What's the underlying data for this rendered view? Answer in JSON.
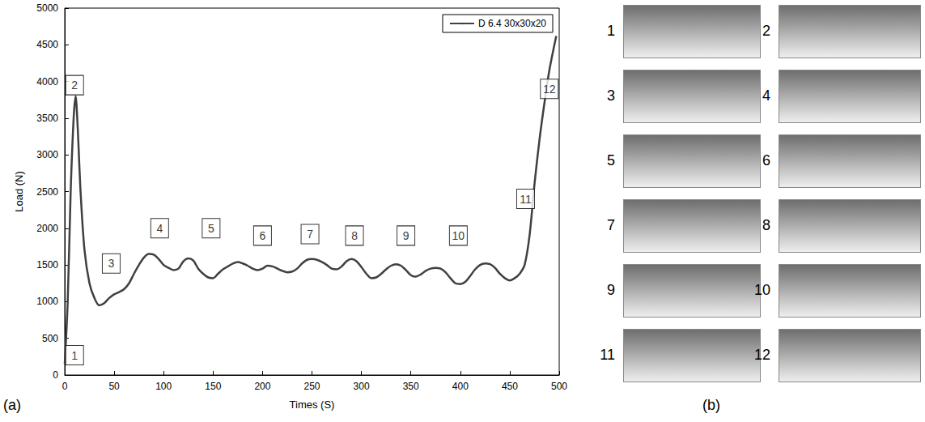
{
  "chart_data": {
    "type": "line",
    "x_label": "Times (S)",
    "y_label": "Load (N)",
    "x": [
      0,
      3,
      6,
      9,
      11,
      13,
      16,
      20,
      25,
      30,
      35,
      40,
      45,
      50,
      55,
      60,
      65,
      70,
      75,
      80,
      85,
      90,
      95,
      100,
      105,
      110,
      115,
      120,
      125,
      130,
      135,
      140,
      145,
      150,
      155,
      160,
      165,
      170,
      175,
      180,
      185,
      190,
      195,
      200,
      205,
      210,
      215,
      220,
      225,
      230,
      235,
      240,
      245,
      250,
      255,
      260,
      265,
      270,
      275,
      280,
      285,
      290,
      295,
      300,
      305,
      310,
      315,
      320,
      325,
      330,
      335,
      340,
      345,
      350,
      355,
      360,
      365,
      370,
      375,
      380,
      385,
      390,
      395,
      400,
      405,
      410,
      415,
      420,
      425,
      430,
      435,
      440,
      445,
      450,
      455,
      460,
      465,
      470,
      475,
      480,
      485,
      490,
      497
    ],
    "series": [
      {
        "name": "D 6.4 30x30x20",
        "color": "#404040",
        "values": [
          150,
          1000,
          2500,
          3500,
          3800,
          3400,
          2500,
          1700,
          1250,
          1050,
          950,
          980,
          1050,
          1100,
          1130,
          1170,
          1250,
          1380,
          1500,
          1600,
          1650,
          1640,
          1580,
          1500,
          1460,
          1430,
          1450,
          1550,
          1590,
          1560,
          1450,
          1380,
          1330,
          1320,
          1380,
          1440,
          1480,
          1520,
          1540,
          1520,
          1490,
          1450,
          1430,
          1450,
          1490,
          1480,
          1450,
          1420,
          1400,
          1410,
          1450,
          1520,
          1570,
          1580,
          1570,
          1540,
          1500,
          1450,
          1440,
          1480,
          1550,
          1580,
          1550,
          1470,
          1380,
          1320,
          1330,
          1380,
          1440,
          1490,
          1510,
          1490,
          1430,
          1360,
          1340,
          1370,
          1420,
          1450,
          1460,
          1450,
          1400,
          1320,
          1250,
          1240,
          1270,
          1350,
          1440,
          1500,
          1520,
          1510,
          1460,
          1380,
          1320,
          1290,
          1320,
          1380,
          1500,
          1900,
          2600,
          3200,
          3700,
          4150,
          4620
        ]
      }
    ],
    "xlim": [
      0,
      500
    ],
    "xticks": [
      0,
      50,
      100,
      150,
      200,
      250,
      300,
      350,
      400,
      450,
      500
    ],
    "ylim": [
      0,
      5000
    ],
    "yticks": [
      0,
      500,
      1000,
      1500,
      2000,
      2500,
      3000,
      3500,
      4000,
      4500,
      5000
    ],
    "grid": false,
    "legend": "upper right",
    "annotations": [
      {
        "text": "1",
        "x": 10,
        "y": 270
      },
      {
        "text": "2",
        "x": 10,
        "y": 3950
      },
      {
        "text": "3",
        "x": 47,
        "y": 1520
      },
      {
        "text": "4",
        "x": 96,
        "y": 2000
      },
      {
        "text": "5",
        "x": 148,
        "y": 2000
      },
      {
        "text": "6",
        "x": 200,
        "y": 1900
      },
      {
        "text": "7",
        "x": 248,
        "y": 1920
      },
      {
        "text": "8",
        "x": 293,
        "y": 1900
      },
      {
        "text": "9",
        "x": 345,
        "y": 1900
      },
      {
        "text": "10",
        "x": 398,
        "y": 1900
      },
      {
        "text": "11",
        "x": 466,
        "y": 2400
      },
      {
        "text": "12",
        "x": 490,
        "y": 3900
      }
    ]
  },
  "figure": {
    "panel_labels": [
      "(a)",
      "(b)"
    ],
    "photos": [
      "1",
      "2",
      "3",
      "4",
      "5",
      "6",
      "7",
      "8",
      "9",
      "10",
      "11",
      "12"
    ]
  }
}
